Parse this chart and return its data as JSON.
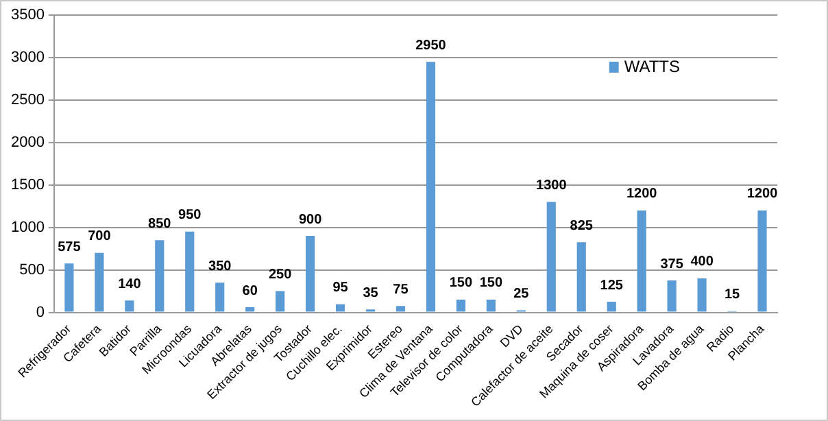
{
  "chart_data": {
    "type": "bar",
    "categories": [
      "Refrigerador",
      "Cafetera",
      "Batidor",
      "Parrilla",
      "Microondas",
      "Licuadora",
      "Abrelatas",
      "Extractor de jugos",
      "Tostador",
      "Cuchillo elec.",
      "Exprimidor",
      "Estereo",
      "Clima de Ventana",
      "Televisor de color",
      "Computadora",
      "DVD",
      "Calefactor de aceite",
      "Secador",
      "Maquina de coser",
      "Aspiradora",
      "Lavadora",
      "Bomba de agua",
      "Radio",
      "Plancha"
    ],
    "series": [
      {
        "name": "WATTS",
        "color": "#5b9bd5",
        "values": [
          575,
          700,
          140,
          850,
          950,
          350,
          60,
          250,
          900,
          95,
          35,
          75,
          2950,
          150,
          150,
          25,
          1300,
          825,
          125,
          1200,
          375,
          400,
          15,
          1200
        ]
      }
    ],
    "ylim": [
      0,
      3500
    ],
    "yticks": [
      0,
      500,
      1000,
      1500,
      2000,
      2500,
      3000,
      3500
    ],
    "grid": "y",
    "legend": "top right",
    "data_labels": true
  }
}
